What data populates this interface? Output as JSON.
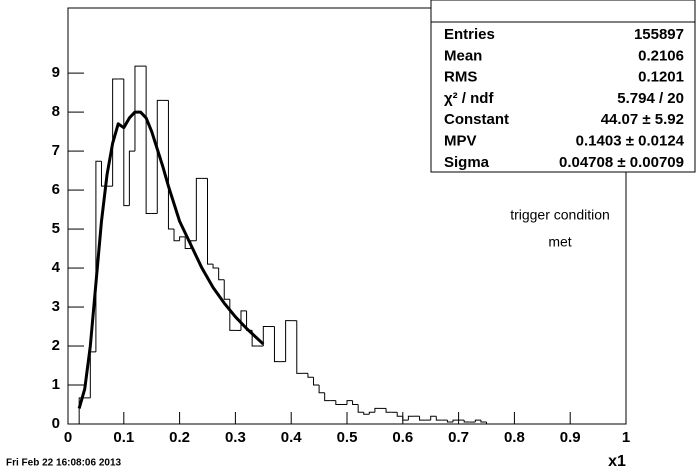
{
  "chart_data": {
    "type": "histogram",
    "x_label": "x1",
    "bins": [
      0.02,
      0.03,
      0.04,
      0.05,
      0.06,
      0.07,
      0.08,
      0.09,
      0.1,
      0.11,
      0.12,
      0.13,
      0.14,
      0.15,
      0.16,
      0.17,
      0.18,
      0.19,
      0.2,
      0.21,
      0.22,
      0.23,
      0.24,
      0.25,
      0.26,
      0.27,
      0.28,
      0.29,
      0.3,
      0.31,
      0.32,
      0.33,
      0.34,
      0.35,
      0.36,
      0.37,
      0.38,
      0.39,
      0.4,
      0.41,
      0.42,
      0.43,
      0.44,
      0.45,
      0.46,
      0.47,
      0.48,
      0.49,
      0.5,
      0.51,
      0.52,
      0.53,
      0.54,
      0.55,
      0.56,
      0.57,
      0.58,
      0.59,
      0.6,
      0.61,
      0.62,
      0.63,
      0.64,
      0.65,
      0.66,
      0.67,
      0.68,
      0.69,
      0.7,
      0.71,
      0.72,
      0.73,
      0.74,
      0.75
    ],
    "values": [
      0.67,
      0.67,
      1.85,
      6.74,
      6.1,
      6.1,
      8.85,
      8.85,
      5.6,
      7.0,
      9.18,
      9.18,
      5.4,
      5.4,
      8.3,
      8.3,
      5.0,
      4.7,
      4.8,
      4.5,
      4.7,
      6.3,
      6.3,
      4.1,
      4.0,
      3.7,
      3.2,
      2.4,
      2.4,
      2.9,
      2.4,
      2.0,
      2.0,
      2.5,
      2.5,
      1.6,
      1.6,
      2.65,
      2.65,
      1.3,
      1.3,
      1.2,
      1.0,
      0.8,
      0.6,
      0.6,
      0.5,
      0.5,
      0.6,
      0.5,
      0.3,
      0.25,
      0.3,
      0.4,
      0.4,
      0.3,
      0.3,
      0.2,
      0.1,
      0.2,
      0.2,
      0.1,
      0.1,
      0.2,
      0.1,
      0.1,
      0.05,
      0.1,
      0.1,
      0.05,
      0.05,
      0.1,
      0.05
    ],
    "color": "#000000",
    "fit": {
      "x": [
        0.02,
        0.03,
        0.04,
        0.05,
        0.06,
        0.07,
        0.08,
        0.09,
        0.1,
        0.11,
        0.12,
        0.13,
        0.14,
        0.15,
        0.16,
        0.17,
        0.18,
        0.2,
        0.22,
        0.24,
        0.26,
        0.28,
        0.3,
        0.32,
        0.35
      ],
      "values": [
        0.4,
        0.9,
        2.0,
        3.6,
        5.2,
        6.4,
        7.2,
        7.7,
        7.6,
        7.85,
        8.0,
        8.0,
        7.85,
        7.5,
        7.05,
        6.6,
        6.1,
        5.2,
        4.6,
        4.0,
        3.5,
        3.1,
        2.75,
        2.45,
        2.05
      ],
      "color": "#000000"
    },
    "xlim": [
      0,
      1
    ],
    "xticks": [
      0,
      0.1,
      0.2,
      0.3,
      0.4,
      0.5,
      0.6,
      0.7,
      0.8,
      0.9,
      1
    ],
    "ylim": [
      0,
      10.67
    ],
    "yticks": [
      0,
      1,
      2,
      3,
      4,
      5,
      6,
      7,
      8,
      9
    ],
    "annotations": [
      "trigger condition",
      "met"
    ],
    "stats": [
      [
        "Entries",
        "155897"
      ],
      [
        "Mean",
        "0.2106"
      ],
      [
        "RMS",
        "0.1201"
      ],
      [
        "χ² / ndf",
        "5.794 / 20"
      ],
      [
        "Constant",
        "44.07 ± 5.92"
      ],
      [
        "MPV",
        "0.1403 ± 0.0124"
      ],
      [
        "Sigma",
        "0.04708 ± 0.00709"
      ]
    ]
  },
  "footer": "Fri Feb 22 16:08:06 2013"
}
